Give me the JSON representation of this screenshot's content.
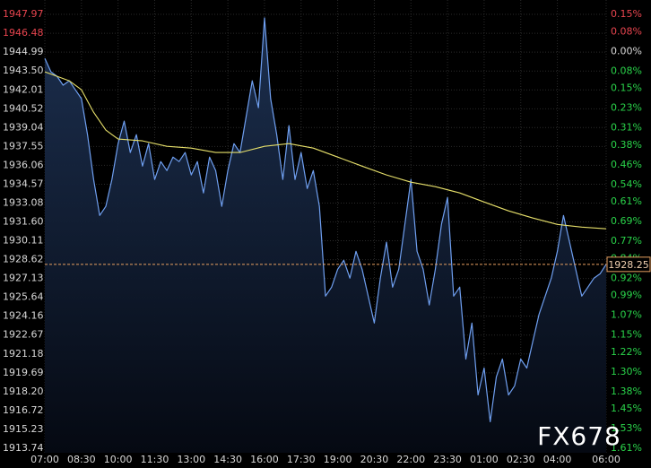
{
  "chart_data": {
    "type": "line",
    "watermark": "FX678",
    "grid": true,
    "area_fill": true,
    "xlim": [
      0,
      23
    ],
    "xticks": [
      {
        "value": 0,
        "label": "07:00"
      },
      {
        "value": 1.5,
        "label": "08:30"
      },
      {
        "value": 3,
        "label": "10:00"
      },
      {
        "value": 4.5,
        "label": "11:30"
      },
      {
        "value": 6,
        "label": "13:00"
      },
      {
        "value": 7.5,
        "label": "14:30"
      },
      {
        "value": 9,
        "label": "16:00"
      },
      {
        "value": 10.5,
        "label": "17:30"
      },
      {
        "value": 12,
        "label": "19:00"
      },
      {
        "value": 13.5,
        "label": "20:30"
      },
      {
        "value": 15,
        "label": "22:00"
      },
      {
        "value": 16.5,
        "label": "23:30"
      },
      {
        "value": 18,
        "label": "01:00"
      },
      {
        "value": 19.5,
        "label": "02:30"
      },
      {
        "value": 21,
        "label": "04:00"
      },
      {
        "value": 23,
        "label": "06:00"
      }
    ],
    "ylim": [
      1913.74,
      1947.97
    ],
    "yticks": [
      1947.97,
      1946.48,
      1944.99,
      {
        "value": 1943.5,
        "label": "1943.50"
      },
      1942.01,
      1940.52,
      1939.04,
      1937.55,
      1936.06,
      1934.57,
      1933.08,
      {
        "value": 1931.6,
        "label": "1931.60"
      },
      1930.11,
      1928.62,
      1927.13,
      1925.64,
      1924.16,
      1922.67,
      1921.18,
      1919.69,
      {
        "value": 1918.2,
        "label": "1918.20"
      },
      1916.72,
      1915.23,
      1913.74
    ],
    "y2lim": [
      -1.61,
      0.15
    ],
    "y2ticks": [
      {
        "value": 0.15,
        "label": "0.15%"
      },
      {
        "value": 0.08,
        "label": "0.08%"
      },
      {
        "value": 0,
        "label": "0.00%"
      },
      {
        "value": -0.08,
        "label": "0.08%"
      },
      {
        "value": -0.15,
        "label": "0.15%"
      },
      {
        "value": -0.23,
        "label": "0.23%"
      },
      {
        "value": -0.31,
        "label": "0.31%"
      },
      {
        "value": -0.38,
        "label": "0.38%"
      },
      {
        "value": -0.46,
        "label": "0.46%"
      },
      {
        "value": -0.54,
        "label": "0.54%"
      },
      {
        "value": -0.61,
        "label": "0.61%"
      },
      {
        "value": -0.69,
        "label": "0.69%"
      },
      {
        "value": -0.77,
        "label": "0.77%"
      },
      {
        "value": -0.84,
        "label": "0.84%"
      },
      {
        "value": -0.92,
        "label": "0.92%"
      },
      {
        "value": -0.99,
        "label": "0.99%"
      },
      {
        "value": -1.07,
        "label": "1.07%"
      },
      {
        "value": -1.15,
        "label": "1.15%"
      },
      {
        "value": -1.22,
        "label": "1.22%"
      },
      {
        "value": -1.3,
        "label": "1.30%"
      },
      {
        "value": -1.38,
        "label": "1.38%"
      },
      {
        "value": -1.45,
        "label": "1.45%"
      },
      {
        "value": -1.53,
        "label": "1.53%"
      },
      {
        "value": -1.61,
        "label": "1.61%"
      }
    ],
    "current_price": 1928.25,
    "series": [
      {
        "color": "#6f9ff0",
        "x": [
          0,
          0.25,
          0.5,
          0.75,
          1,
          1.25,
          1.5,
          1.75,
          2,
          2.25,
          2.5,
          2.75,
          3,
          3.25,
          3.5,
          3.75,
          4,
          4.25,
          4.5,
          4.75,
          5,
          5.25,
          5.5,
          5.75,
          6,
          6.25,
          6.5,
          6.75,
          7,
          7.25,
          7.5,
          7.75,
          8,
          8.25,
          8.5,
          8.75,
          9,
          9.25,
          9.5,
          9.75,
          10,
          10.25,
          10.5,
          10.75,
          11,
          11.25,
          11.5,
          11.75,
          12,
          12.25,
          12.5,
          12.75,
          13,
          13.25,
          13.5,
          13.75,
          14,
          14.25,
          14.5,
          14.75,
          15,
          15.25,
          15.5,
          15.75,
          16,
          16.25,
          16.5,
          16.75,
          17,
          17.25,
          17.5,
          17.75,
          18,
          18.25,
          18.5,
          18.75,
          19,
          19.25,
          19.5,
          19.75,
          20,
          20.25,
          20.5,
          20.75,
          21,
          21.25,
          21.5,
          21.75,
          22,
          22.25,
          22.5,
          22.75,
          23
        ],
        "values": [
          1944.5,
          1943.44,
          1943.08,
          1942.38,
          1942.73,
          1942.02,
          1941.32,
          1938.48,
          1934.94,
          1932.11,
          1932.82,
          1934.94,
          1937.77,
          1939.55,
          1937.07,
          1938.48,
          1936.0,
          1937.77,
          1934.94,
          1936.36,
          1935.65,
          1936.71,
          1936.36,
          1937.07,
          1935.3,
          1936.36,
          1933.88,
          1936.71,
          1935.65,
          1932.82,
          1935.65,
          1937.77,
          1937.07,
          1939.9,
          1942.73,
          1940.61,
          1947.69,
          1941.32,
          1938.48,
          1934.94,
          1939.19,
          1934.94,
          1937.07,
          1934.23,
          1935.65,
          1932.82,
          1925.74,
          1926.45,
          1927.86,
          1928.57,
          1927.16,
          1929.28,
          1927.86,
          1925.74,
          1923.62,
          1927.16,
          1930.0,
          1926.45,
          1927.86,
          1931.4,
          1934.94,
          1929.28,
          1927.86,
          1925.04,
          1927.86,
          1931.4,
          1933.52,
          1925.74,
          1926.45,
          1920.78,
          1923.62,
          1917.95,
          1920.07,
          1915.83,
          1919.37,
          1920.78,
          1917.95,
          1918.66,
          1920.78,
          1920.07,
          1922.2,
          1924.32,
          1925.74,
          1927.16,
          1929.28,
          1932.11,
          1930.0,
          1927.86,
          1925.74,
          1926.45,
          1927.16,
          1927.5,
          1928.25
        ]
      },
      {
        "color": "#e6df6a",
        "x": [
          0,
          1,
          1.5,
          2,
          2.5,
          3,
          4,
          5,
          6,
          7,
          8,
          9,
          10,
          11,
          12,
          13,
          14,
          15,
          16,
          17,
          18,
          19,
          20,
          21,
          22,
          23
        ],
        "values": [
          1943.44,
          1942.73,
          1942.02,
          1940.25,
          1938.84,
          1938.13,
          1937.99,
          1937.56,
          1937.42,
          1937.07,
          1937.07,
          1937.56,
          1937.77,
          1937.42,
          1936.71,
          1936.0,
          1935.3,
          1934.73,
          1934.38,
          1933.88,
          1933.17,
          1932.47,
          1931.9,
          1931.4,
          1931.19,
          1931.05
        ]
      }
    ]
  }
}
